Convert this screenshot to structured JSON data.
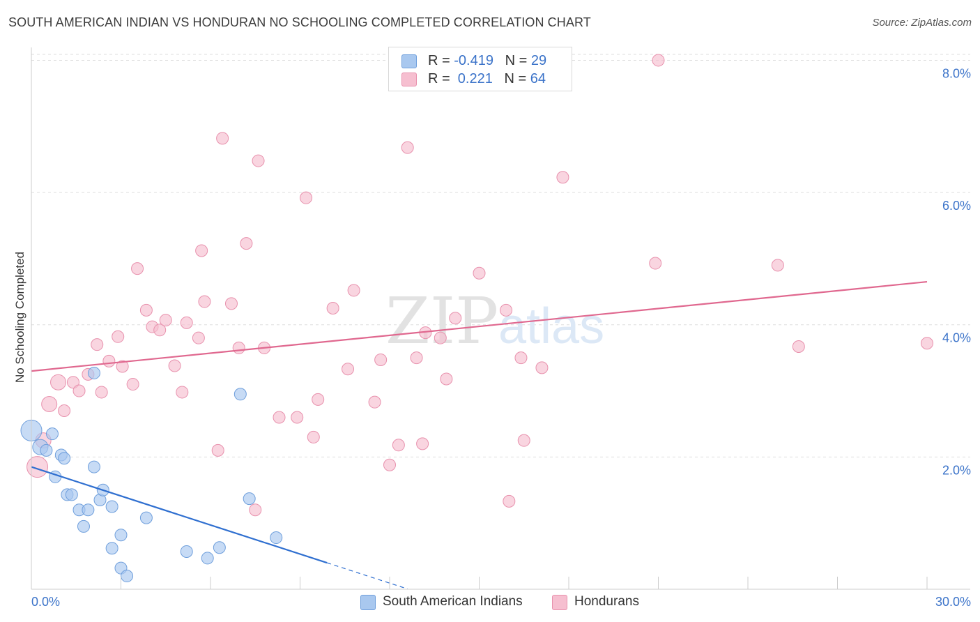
{
  "header": {
    "title": "SOUTH AMERICAN INDIAN VS HONDURAN NO SCHOOLING COMPLETED CORRELATION CHART",
    "source": "Source: ZipAtlas.com"
  },
  "legend_top": {
    "rows": [
      {
        "r_label": "R = ",
        "r_value": "-0.419",
        "n_label": "N = ",
        "n_value": "29"
      },
      {
        "r_label": "R = ",
        "r_value": " 0.221",
        "n_label": "N = ",
        "n_value": "64"
      }
    ]
  },
  "legend_bottom": {
    "items": [
      "South American Indians",
      "Hondurans"
    ]
  },
  "watermark": {
    "zip": "ZIP",
    "atlas": "atlas"
  },
  "colors": {
    "blue_fill": "#a9c8ef",
    "blue_stroke": "#6f9fdc",
    "blue_line": "#2f6fd0",
    "pink_fill": "#f6bfd0",
    "pink_stroke": "#e891ad",
    "pink_line": "#e0688f",
    "axis_text": "#3b73c9",
    "grid": "#dddddd"
  },
  "chart_data": {
    "type": "scatter",
    "title": "SOUTH AMERICAN INDIAN VS HONDURAN NO SCHOOLING COMPLETED CORRELATION CHART",
    "xlabel": "",
    "ylabel": "No Schooling Completed",
    "xlim": [
      0,
      30
    ],
    "ylim": [
      0,
      8.3
    ],
    "x_tick_labels": [
      "0.0%",
      "30.0%"
    ],
    "y_ticks": [
      2,
      4,
      6,
      8
    ],
    "y_tick_labels": [
      "2.0%",
      "4.0%",
      "6.0%",
      "8.0%"
    ],
    "grid": true,
    "legend_placement": "bottom-center",
    "series": [
      {
        "name": "South American Indians",
        "r": -0.419,
        "n": 29,
        "points": [
          [
            0.0,
            2.4,
            3
          ],
          [
            0.3,
            2.15,
            2
          ],
          [
            0.5,
            2.1,
            1
          ],
          [
            0.7,
            2.35,
            1
          ],
          [
            0.8,
            1.7,
            1
          ],
          [
            1.0,
            2.03,
            1
          ],
          [
            1.1,
            1.98,
            1
          ],
          [
            1.2,
            1.43,
            1
          ],
          [
            1.35,
            1.43,
            1
          ],
          [
            1.6,
            1.2,
            1
          ],
          [
            1.75,
            0.95,
            1
          ],
          [
            1.9,
            1.2,
            1
          ],
          [
            2.1,
            3.27,
            1
          ],
          [
            2.1,
            1.85,
            1
          ],
          [
            2.3,
            1.35,
            1
          ],
          [
            2.4,
            1.5,
            1
          ],
          [
            2.7,
            0.62,
            1
          ],
          [
            2.7,
            1.25,
            1
          ],
          [
            3.0,
            0.82,
            1
          ],
          [
            3.0,
            0.32,
            1
          ],
          [
            3.2,
            0.2,
            1
          ],
          [
            3.85,
            1.08,
            1
          ],
          [
            5.2,
            0.57,
            1
          ],
          [
            5.9,
            0.47,
            1
          ],
          [
            6.3,
            0.63,
            1
          ],
          [
            7.0,
            2.95,
            1
          ],
          [
            7.3,
            1.37,
            1
          ],
          [
            8.2,
            0.78,
            1
          ]
        ],
        "trend": {
          "x0": 0,
          "y0": 1.85,
          "x1": 9.9,
          "y1": 0.4,
          "dash_to_x": 12.6
        }
      },
      {
        "name": "Hondurans",
        "r": 0.221,
        "n": 64,
        "points": [
          [
            0.2,
            1.85,
            3
          ],
          [
            0.4,
            2.25,
            2
          ],
          [
            0.6,
            2.8,
            2
          ],
          [
            0.9,
            3.13,
            2
          ],
          [
            1.1,
            2.7,
            1
          ],
          [
            1.4,
            3.13,
            1
          ],
          [
            1.6,
            3.0,
            1
          ],
          [
            1.9,
            3.25,
            1
          ],
          [
            2.2,
            3.7,
            1
          ],
          [
            2.35,
            2.98,
            1
          ],
          [
            2.6,
            3.45,
            1
          ],
          [
            2.9,
            3.82,
            1
          ],
          [
            3.05,
            3.37,
            1
          ],
          [
            3.4,
            3.1,
            1
          ],
          [
            3.55,
            4.85,
            1
          ],
          [
            3.85,
            4.22,
            1
          ],
          [
            4.05,
            3.97,
            1
          ],
          [
            4.3,
            3.92,
            1
          ],
          [
            4.5,
            4.07,
            1
          ],
          [
            4.8,
            3.38,
            1
          ],
          [
            5.05,
            2.98,
            1
          ],
          [
            5.2,
            4.03,
            1
          ],
          [
            5.6,
            3.8,
            1
          ],
          [
            5.7,
            5.12,
            1
          ],
          [
            5.8,
            4.35,
            1
          ],
          [
            6.25,
            2.1,
            1
          ],
          [
            6.4,
            6.82,
            1
          ],
          [
            6.7,
            4.32,
            1
          ],
          [
            6.95,
            3.65,
            1
          ],
          [
            7.2,
            5.23,
            1
          ],
          [
            7.5,
            1.2,
            1
          ],
          [
            7.6,
            6.48,
            1
          ],
          [
            7.8,
            3.65,
            1
          ],
          [
            8.3,
            2.6,
            1
          ],
          [
            8.9,
            2.6,
            1
          ],
          [
            9.2,
            5.92,
            1
          ],
          [
            9.45,
            2.3,
            1
          ],
          [
            9.6,
            2.87,
            1
          ],
          [
            10.1,
            4.25,
            1
          ],
          [
            10.6,
            3.33,
            1
          ],
          [
            10.8,
            4.52,
            1
          ],
          [
            11.5,
            2.83,
            1
          ],
          [
            11.7,
            3.47,
            1
          ],
          [
            12.0,
            1.88,
            1
          ],
          [
            12.3,
            2.18,
            1
          ],
          [
            12.6,
            6.68,
            1
          ],
          [
            12.9,
            3.5,
            1
          ],
          [
            13.1,
            2.2,
            1
          ],
          [
            13.2,
            3.88,
            1
          ],
          [
            13.7,
            3.8,
            1
          ],
          [
            13.9,
            3.18,
            1
          ],
          [
            14.2,
            4.1,
            1
          ],
          [
            15.0,
            4.78,
            1
          ],
          [
            15.9,
            4.22,
            1
          ],
          [
            16.0,
            1.33,
            1
          ],
          [
            16.4,
            3.5,
            1
          ],
          [
            16.5,
            2.25,
            1
          ],
          [
            17.1,
            3.35,
            1
          ],
          [
            17.8,
            6.23,
            1
          ],
          [
            20.9,
            4.93,
            1
          ],
          [
            21.0,
            8.0,
            1
          ],
          [
            25.0,
            4.9,
            1
          ],
          [
            25.7,
            3.67,
            1
          ],
          [
            30.0,
            3.72,
            1
          ]
        ],
        "trend": {
          "x0": 0,
          "y0": 3.3,
          "x1": 30,
          "y1": 4.65
        }
      }
    ]
  }
}
